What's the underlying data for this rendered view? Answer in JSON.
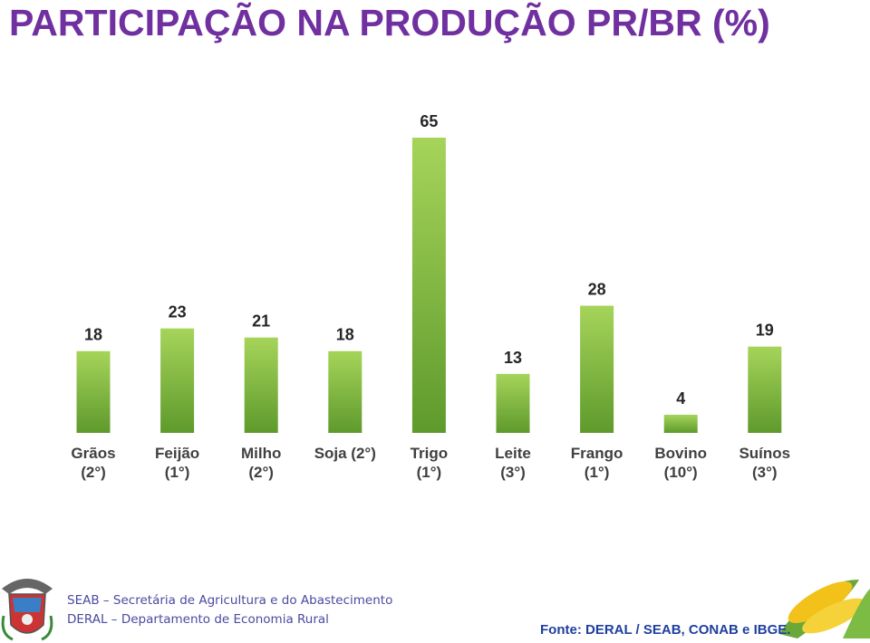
{
  "chart_data": {
    "type": "bar",
    "title": "PARTICIPAÇÃO NA PRODUÇÃO PR/BR (%)",
    "categories": [
      "Grãos (2°)",
      "Feijão (1°)",
      "Milho (2°)",
      "Soja (2°)",
      "Trigo (1°)",
      "Leite (3°)",
      "Frango (1°)",
      "Bovino (10°)",
      "Suínos (3°)"
    ],
    "values": [
      18,
      23,
      21,
      18,
      65,
      13,
      28,
      4,
      19
    ],
    "color": "#8cc43f"
  },
  "footer": {
    "lines": [
      "SEAB – Secretária de Agricultura e do Abastecimento",
      "DERAL – Departamento de Economia Rural"
    ],
    "source": "Fonte: DERAL / SEAB, CONAB e IBGE."
  }
}
